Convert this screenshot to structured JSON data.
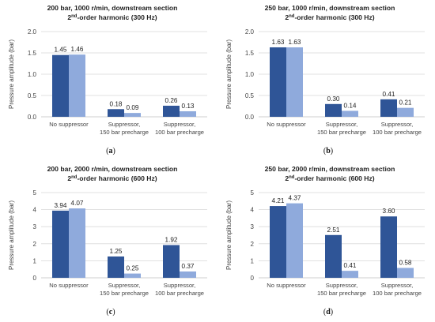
{
  "colors": {
    "series1": "#2f5597",
    "series2": "#8faadc"
  },
  "chart_data": [
    {
      "type": "bar",
      "panel_label": "(a)",
      "title": "200 bar, 1000 r/min, downstream section",
      "subtitle": {
        "pre": "2",
        "sup": "nd",
        "post": "-order harmonic (300 Hz)"
      },
      "ylabel": "Pressure amplitude (bar)",
      "ylim": [
        0,
        2.0
      ],
      "yticks": [
        "0.0",
        "0.5",
        "1.0",
        "1.5",
        "2.0"
      ],
      "categories": [
        [
          "No suppressor"
        ],
        [
          "Suppressor,",
          "150 bar precharge"
        ],
        [
          "Suppressor,",
          "100 bar precharge"
        ]
      ],
      "series": [
        {
          "values": [
            1.45,
            0.18,
            0.26
          ],
          "labels": [
            "1.45",
            "0.18",
            "0.26"
          ]
        },
        {
          "values": [
            1.46,
            0.09,
            0.13
          ],
          "labels": [
            "1.46",
            "0.09",
            "0.13"
          ]
        }
      ]
    },
    {
      "type": "bar",
      "panel_label": "(b)",
      "title": "250 bar, 1000 r/min, downstream section",
      "subtitle": {
        "pre": "2",
        "sup": "nd",
        "post": "-order harmonic (300 Hz)"
      },
      "ylabel": "Pressure amplitude (bar)",
      "ylim": [
        0,
        2.0
      ],
      "yticks": [
        "0.0",
        "0.5",
        "1.0",
        "1.5",
        "2.0"
      ],
      "categories": [
        [
          "No suppressor"
        ],
        [
          "Suppressor,",
          "150 bar precharge"
        ],
        [
          "Suppressor,",
          "100 bar precharge"
        ]
      ],
      "series": [
        {
          "values": [
            1.63,
            0.3,
            0.41
          ],
          "labels": [
            "1.63",
            "0.30",
            "0.41"
          ]
        },
        {
          "values": [
            1.63,
            0.14,
            0.21
          ],
          "labels": [
            "1.63",
            "0.14",
            "0.21"
          ]
        }
      ]
    },
    {
      "type": "bar",
      "panel_label": "(c)",
      "title": "200 bar, 2000 r/min, downstream section",
      "subtitle": {
        "pre": "2",
        "sup": "nd",
        "post": "-order harmonic (600 Hz)"
      },
      "ylabel": "Pressure amplitude (bar)",
      "ylim": [
        0,
        5
      ],
      "yticks": [
        "0",
        "1",
        "2",
        "3",
        "4",
        "5"
      ],
      "categories": [
        [
          "No suppressor"
        ],
        [
          "Suppressor,",
          "150 bar precharge"
        ],
        [
          "Suppressor,",
          "100 bar precharge"
        ]
      ],
      "series": [
        {
          "values": [
            3.94,
            1.25,
            1.92
          ],
          "labels": [
            "3.94",
            "1.25",
            "1.92"
          ]
        },
        {
          "values": [
            4.07,
            0.25,
            0.37
          ],
          "labels": [
            "4.07",
            "0.25",
            "0.37"
          ]
        }
      ]
    },
    {
      "type": "bar",
      "panel_label": "(d)",
      "title": "250 bar, 2000 r/min, downstream section",
      "subtitle": {
        "pre": "2",
        "sup": "nd",
        "post": "-order harmonic (600 Hz)"
      },
      "ylabel": "Pressure amplitude (bar)",
      "ylim": [
        0,
        5
      ],
      "yticks": [
        "0",
        "1",
        "2",
        "3",
        "4",
        "5"
      ],
      "categories": [
        [
          "No suppressor"
        ],
        [
          "Suppressor,",
          "150 bar precharge"
        ],
        [
          "Suppressor,",
          "100 bar precharge"
        ]
      ],
      "series": [
        {
          "values": [
            4.21,
            2.51,
            3.6
          ],
          "labels": [
            "4.21",
            "2.51",
            "3.60"
          ]
        },
        {
          "values": [
            4.37,
            0.41,
            0.58
          ],
          "labels": [
            "4.37",
            "0.41",
            "0.58"
          ]
        }
      ]
    }
  ]
}
